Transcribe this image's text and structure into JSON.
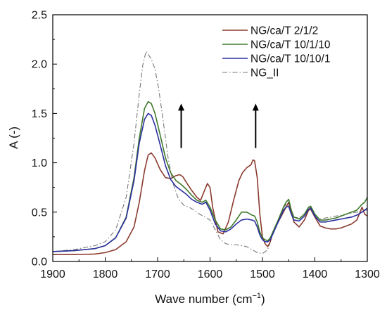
{
  "chart_data": {
    "type": "line",
    "title": "",
    "xlabel": "Wave number (cm",
    "xlabel_sup": "−1",
    "xlabel_close": ")",
    "ylabel": "A (-)",
    "xlim": [
      1900,
      1300
    ],
    "ylim": [
      0,
      2.5
    ],
    "x_ticks": [
      1900,
      1800,
      1700,
      1600,
      1500,
      1400,
      1300
    ],
    "y_ticks": [
      "0.0",
      "0.5",
      "1.0",
      "1.5",
      "2.0",
      "2.5"
    ],
    "x_reversed": true,
    "grid": false,
    "legend_position": "top-right",
    "annotations": [
      {
        "type": "arrow-up",
        "x": 1655,
        "y_from": 1.15,
        "y_to": 1.6
      },
      {
        "type": "arrow-up",
        "x": 1513,
        "y_from": 1.15,
        "y_to": 1.6
      }
    ],
    "series": [
      {
        "name": "NG/ca/T 2/1/2",
        "color": "#8b3a2e",
        "dash": "solid",
        "x": [
          1900,
          1860,
          1820,
          1800,
          1780,
          1760,
          1745,
          1735,
          1725,
          1718,
          1712,
          1705,
          1695,
          1685,
          1675,
          1665,
          1658,
          1652,
          1645,
          1635,
          1625,
          1618,
          1612,
          1605,
          1600,
          1595,
          1585,
          1575,
          1565,
          1555,
          1545,
          1538,
          1530,
          1522,
          1518,
          1515,
          1510,
          1505,
          1500,
          1495,
          1490,
          1485,
          1480,
          1470,
          1460,
          1455,
          1450,
          1445,
          1440,
          1430,
          1420,
          1412,
          1408,
          1400,
          1390,
          1380,
          1370,
          1360,
          1350,
          1340,
          1330,
          1320,
          1310,
          1305,
          1300
        ],
        "y": [
          0.07,
          0.07,
          0.075,
          0.09,
          0.12,
          0.2,
          0.35,
          0.6,
          0.92,
          1.08,
          1.1,
          1.05,
          0.93,
          0.85,
          0.84,
          0.87,
          0.88,
          0.86,
          0.8,
          0.72,
          0.65,
          0.62,
          0.7,
          0.79,
          0.75,
          0.55,
          0.3,
          0.28,
          0.4,
          0.62,
          0.82,
          0.9,
          0.95,
          0.98,
          1.03,
          1.02,
          0.85,
          0.48,
          0.25,
          0.18,
          0.15,
          0.2,
          0.3,
          0.4,
          0.5,
          0.55,
          0.6,
          0.5,
          0.4,
          0.35,
          0.42,
          0.52,
          0.53,
          0.45,
          0.36,
          0.34,
          0.33,
          0.33,
          0.34,
          0.36,
          0.38,
          0.42,
          0.55,
          0.48,
          0.46
        ]
      },
      {
        "name": "NG/ca/T 10/1/10",
        "color": "#3f7a2a",
        "dash": "solid",
        "x": [
          1900,
          1860,
          1820,
          1800,
          1780,
          1760,
          1745,
          1735,
          1725,
          1718,
          1712,
          1705,
          1695,
          1685,
          1675,
          1665,
          1655,
          1645,
          1635,
          1625,
          1615,
          1608,
          1600,
          1590,
          1580,
          1570,
          1560,
          1550,
          1540,
          1530,
          1520,
          1515,
          1510,
          1505,
          1500,
          1495,
          1490,
          1485,
          1480,
          1470,
          1460,
          1455,
          1450,
          1445,
          1440,
          1430,
          1420,
          1412,
          1408,
          1400,
          1390,
          1380,
          1370,
          1360,
          1350,
          1340,
          1330,
          1320,
          1310,
          1305,
          1300
        ],
        "y": [
          0.1,
          0.11,
          0.13,
          0.16,
          0.24,
          0.45,
          0.85,
          1.25,
          1.55,
          1.62,
          1.6,
          1.5,
          1.28,
          1.05,
          0.9,
          0.82,
          0.78,
          0.73,
          0.67,
          0.62,
          0.6,
          0.62,
          0.55,
          0.42,
          0.33,
          0.32,
          0.35,
          0.42,
          0.5,
          0.5,
          0.47,
          0.46,
          0.4,
          0.3,
          0.24,
          0.22,
          0.21,
          0.24,
          0.3,
          0.42,
          0.55,
          0.6,
          0.63,
          0.52,
          0.45,
          0.43,
          0.48,
          0.55,
          0.56,
          0.48,
          0.42,
          0.42,
          0.43,
          0.44,
          0.46,
          0.48,
          0.5,
          0.52,
          0.58,
          0.6,
          0.65
        ]
      },
      {
        "name": "NG/ca/T 10/10/1",
        "color": "#2b2fa0",
        "dash": "solid",
        "x": [
          1900,
          1860,
          1820,
          1800,
          1780,
          1760,
          1745,
          1735,
          1725,
          1718,
          1712,
          1705,
          1695,
          1685,
          1675,
          1665,
          1655,
          1645,
          1635,
          1625,
          1615,
          1608,
          1600,
          1590,
          1580,
          1570,
          1560,
          1550,
          1540,
          1530,
          1520,
          1515,
          1510,
          1505,
          1500,
          1495,
          1490,
          1485,
          1480,
          1470,
          1460,
          1455,
          1450,
          1445,
          1440,
          1430,
          1420,
          1412,
          1408,
          1400,
          1390,
          1380,
          1370,
          1360,
          1350,
          1340,
          1330,
          1320,
          1310,
          1305,
          1300
        ],
        "y": [
          0.1,
          0.11,
          0.13,
          0.16,
          0.24,
          0.44,
          0.82,
          1.2,
          1.44,
          1.5,
          1.48,
          1.38,
          1.18,
          0.97,
          0.83,
          0.76,
          0.72,
          0.68,
          0.63,
          0.6,
          0.58,
          0.6,
          0.52,
          0.38,
          0.31,
          0.3,
          0.33,
          0.38,
          0.42,
          0.43,
          0.42,
          0.41,
          0.35,
          0.27,
          0.22,
          0.2,
          0.2,
          0.22,
          0.28,
          0.4,
          0.52,
          0.55,
          0.56,
          0.48,
          0.42,
          0.41,
          0.46,
          0.53,
          0.54,
          0.46,
          0.4,
          0.4,
          0.41,
          0.42,
          0.43,
          0.44,
          0.45,
          0.47,
          0.5,
          0.52,
          0.54
        ]
      },
      {
        "name": "NG_II",
        "color": "#777777",
        "dash": "dashdot",
        "x": [
          1900,
          1860,
          1820,
          1800,
          1780,
          1760,
          1745,
          1735,
          1728,
          1722,
          1718,
          1712,
          1705,
          1698,
          1690,
          1680,
          1670,
          1660,
          1650,
          1640,
          1630,
          1620,
          1610,
          1600,
          1590,
          1580,
          1570,
          1560,
          1550,
          1540,
          1530,
          1520,
          1510,
          1500,
          1490,
          1485,
          1480,
          1470,
          1460,
          1455,
          1450,
          1445,
          1440,
          1430,
          1420,
          1412,
          1408,
          1400,
          1390,
          1380,
          1370,
          1360,
          1350,
          1340,
          1330,
          1320,
          1310,
          1305,
          1300
        ],
        "y": [
          0.1,
          0.12,
          0.16,
          0.2,
          0.32,
          0.65,
          1.2,
          1.7,
          2.0,
          2.13,
          2.1,
          2.05,
          1.95,
          1.75,
          1.45,
          1.05,
          0.78,
          0.63,
          0.57,
          0.55,
          0.52,
          0.48,
          0.45,
          0.42,
          0.32,
          0.22,
          0.18,
          0.17,
          0.17,
          0.16,
          0.15,
          0.12,
          0.09,
          0.08,
          0.12,
          0.2,
          0.3,
          0.42,
          0.54,
          0.58,
          0.58,
          0.5,
          0.45,
          0.44,
          0.48,
          0.54,
          0.55,
          0.47,
          0.43,
          0.44,
          0.45,
          0.46,
          0.47,
          0.48,
          0.49,
          0.5,
          0.51,
          0.52,
          0.52
        ]
      }
    ]
  }
}
